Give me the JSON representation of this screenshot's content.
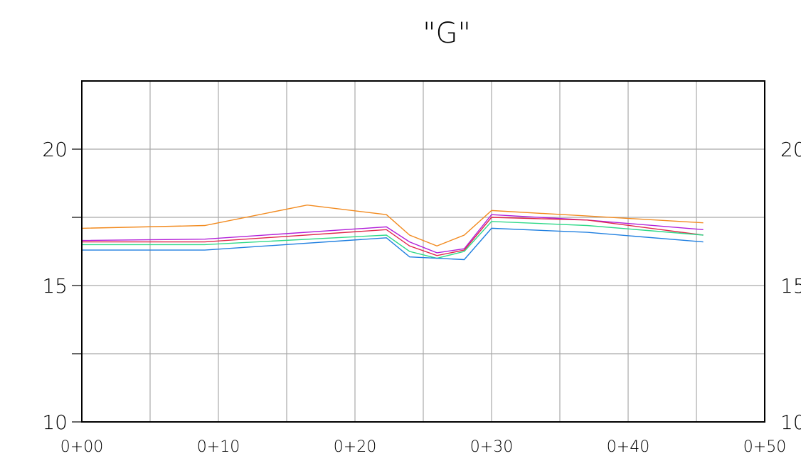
{
  "chart_data": {
    "type": "line",
    "title": "\"G\"",
    "xlabel": "",
    "ylabel": "",
    "xlim": [
      0,
      50
    ],
    "ylim": [
      10,
      22.5
    ],
    "x_ticks": [
      {
        "value": 0,
        "label": "0+00"
      },
      {
        "value": 10,
        "label": "0+10"
      },
      {
        "value": 20,
        "label": "0+20"
      },
      {
        "value": 30,
        "label": "0+30"
      },
      {
        "value": 40,
        "label": "0+40"
      },
      {
        "value": 50,
        "label": "0+50"
      }
    ],
    "x_gridlines": [
      0,
      5,
      10,
      15,
      20,
      25,
      30,
      35,
      40,
      45,
      50
    ],
    "y_ticks": [
      {
        "value": 10,
        "label": "10"
      },
      {
        "value": 15,
        "label": "15"
      },
      {
        "value": 20,
        "label": "20"
      }
    ],
    "y_minor_ticks": [
      12.5,
      17.5
    ],
    "y_gridlines": [
      12.5,
      15,
      17.5,
      20
    ],
    "right_axis_labels": true,
    "grid": true,
    "series": [
      {
        "color": "#f28a1e",
        "points": [
          [
            0,
            17.1
          ],
          [
            9,
            17.2
          ],
          [
            16.5,
            17.95
          ],
          [
            22.3,
            17.6
          ],
          [
            24,
            16.85
          ],
          [
            26,
            16.45
          ],
          [
            28,
            16.85
          ],
          [
            30,
            17.75
          ],
          [
            37,
            17.55
          ],
          [
            45.5,
            17.3
          ]
        ]
      },
      {
        "color": "#b21fd9",
        "points": [
          [
            0,
            16.65
          ],
          [
            9,
            16.7
          ],
          [
            22.3,
            17.15
          ],
          [
            24,
            16.6
          ],
          [
            26,
            16.2
          ],
          [
            28,
            16.35
          ],
          [
            30,
            17.6
          ],
          [
            37,
            17.4
          ],
          [
            45.5,
            17.05
          ]
        ]
      },
      {
        "color": "#e0274b",
        "points": [
          [
            0,
            16.6
          ],
          [
            9,
            16.6
          ],
          [
            22.3,
            17.05
          ],
          [
            24,
            16.45
          ],
          [
            26,
            16.1
          ],
          [
            28,
            16.3
          ],
          [
            30,
            17.5
          ],
          [
            37,
            17.4
          ],
          [
            45.5,
            16.85
          ]
        ]
      },
      {
        "color": "#2fd989",
        "points": [
          [
            0,
            16.5
          ],
          [
            9,
            16.5
          ],
          [
            22.3,
            16.85
          ],
          [
            24,
            16.25
          ],
          [
            26,
            16.0
          ],
          [
            28,
            16.25
          ],
          [
            30,
            17.35
          ],
          [
            37,
            17.2
          ],
          [
            45.5,
            16.85
          ]
        ]
      },
      {
        "color": "#1f7fe0",
        "points": [
          [
            0,
            16.3
          ],
          [
            9,
            16.3
          ],
          [
            22.3,
            16.75
          ],
          [
            24,
            16.05
          ],
          [
            26,
            16.0
          ],
          [
            28,
            15.95
          ],
          [
            30,
            17.1
          ],
          [
            37,
            16.95
          ],
          [
            45.5,
            16.6
          ]
        ]
      }
    ]
  }
}
